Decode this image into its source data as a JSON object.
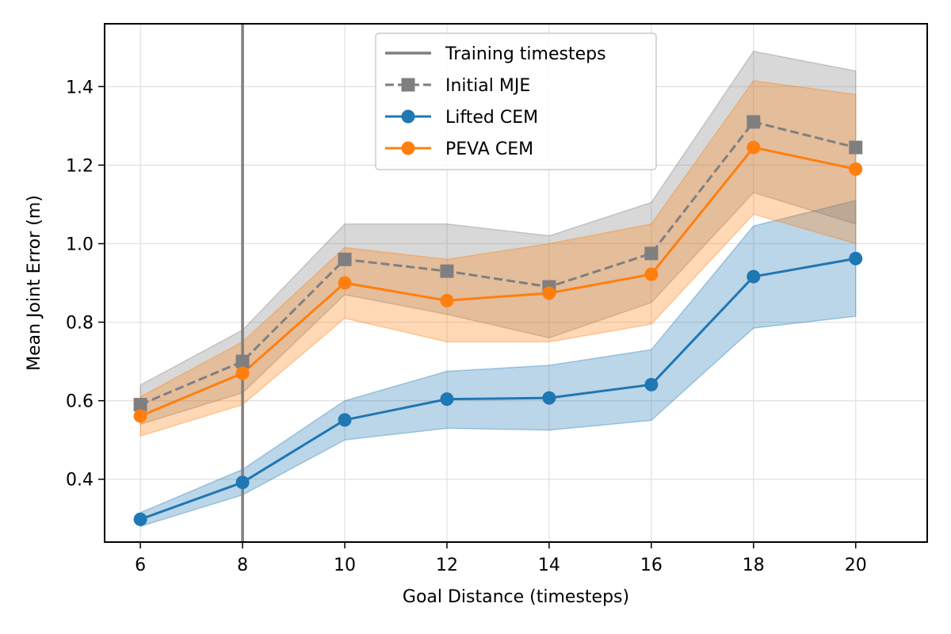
{
  "chart_data": {
    "type": "line",
    "title": "",
    "xlabel": "Goal Distance (timesteps)",
    "ylabel": "Mean Joint Error (m)",
    "x": [
      6,
      8,
      10,
      12,
      14,
      16,
      18,
      20
    ],
    "xlim": [
      5.3,
      21.4
    ],
    "ylim": [
      0.24,
      1.56
    ],
    "xticks": [
      6,
      8,
      10,
      12,
      14,
      16,
      18,
      20
    ],
    "yticks": [
      0.4,
      0.6,
      0.8,
      1.0,
      1.2,
      1.4
    ],
    "ytick_labels": [
      "0.4",
      "0.6",
      "0.8",
      "1.0",
      "1.2",
      "1.4"
    ],
    "grid": true,
    "legend_position": "top-center",
    "vline": {
      "x": 8,
      "name": "Training timesteps",
      "color": "#7f7f7f"
    },
    "series": [
      {
        "name": "Initial MJE",
        "color": "#7f7f7f",
        "style": "dashed",
        "marker": "square",
        "values": [
          0.59,
          0.7,
          0.96,
          0.93,
          0.89,
          0.975,
          1.31,
          1.245
        ],
        "lower": [
          0.54,
          0.62,
          0.87,
          0.82,
          0.76,
          0.85,
          1.13,
          1.05
        ],
        "upper": [
          0.64,
          0.78,
          1.05,
          1.05,
          1.02,
          1.105,
          1.49,
          1.44
        ]
      },
      {
        "name": "Lifted CEM",
        "color": "#1f77b4",
        "style": "solid",
        "marker": "circle",
        "values": [
          0.298,
          0.392,
          0.551,
          0.604,
          0.607,
          0.641,
          0.916,
          0.962
        ],
        "lower": [
          0.28,
          0.36,
          0.5,
          0.53,
          0.525,
          0.55,
          0.785,
          0.815
        ],
        "upper": [
          0.315,
          0.425,
          0.6,
          0.675,
          0.69,
          0.73,
          1.045,
          1.11
        ]
      },
      {
        "name": "PEVA CEM",
        "color": "#ff7f0e",
        "style": "solid",
        "marker": "circle",
        "values": [
          0.561,
          0.67,
          0.9,
          0.855,
          0.874,
          0.922,
          1.245,
          1.19
        ],
        "lower": [
          0.51,
          0.59,
          0.81,
          0.75,
          0.75,
          0.795,
          1.075,
          1.0
        ],
        "upper": [
          0.61,
          0.75,
          0.99,
          0.96,
          1.0,
          1.05,
          1.415,
          1.38
        ]
      }
    ]
  }
}
